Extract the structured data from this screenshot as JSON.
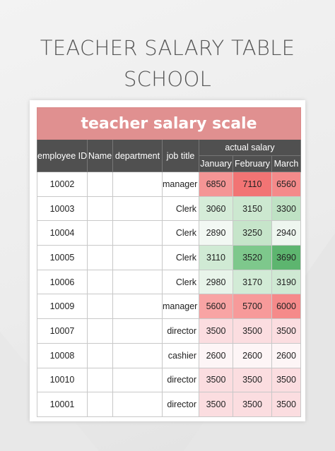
{
  "title_line1": "TEACHER SALARY TABLE",
  "title_line2": "SCHOOL",
  "table_title": "teacher salary scale",
  "headers": {
    "employee_id": "employee ID",
    "name": "Name",
    "department": "department",
    "job_title": "job title",
    "actual_salary": "actual salary",
    "january": "January",
    "february": "February",
    "march": "March"
  },
  "rows": [
    {
      "id": "10002",
      "name": "",
      "department": "",
      "job": "manager",
      "jan": "6850",
      "feb": "7110",
      "mar": "6560"
    },
    {
      "id": "10003",
      "name": "",
      "department": "",
      "job": "Clerk",
      "jan": "3060",
      "feb": "3150",
      "mar": "3300"
    },
    {
      "id": "10004",
      "name": "",
      "department": "",
      "job": "Clerk",
      "jan": "2890",
      "feb": "3250",
      "mar": "2940"
    },
    {
      "id": "10005",
      "name": "",
      "department": "",
      "job": "Clerk",
      "jan": "3110",
      "feb": "3520",
      "mar": "3690"
    },
    {
      "id": "10006",
      "name": "",
      "department": "",
      "job": "Clerk",
      "jan": "2980",
      "feb": "3170",
      "mar": "3190"
    },
    {
      "id": "10009",
      "name": "",
      "department": "",
      "job": "manager",
      "jan": "5600",
      "feb": "5700",
      "mar": "6000"
    },
    {
      "id": "10007",
      "name": "",
      "department": "",
      "job": "director",
      "jan": "3500",
      "feb": "3500",
      "mar": "3500"
    },
    {
      "id": "10008",
      "name": "",
      "department": "",
      "job": "cashier",
      "jan": "2600",
      "feb": "2600",
      "mar": "2600"
    },
    {
      "id": "10010",
      "name": "",
      "department": "",
      "job": "director",
      "jan": "3500",
      "feb": "3500",
      "mar": "3500"
    },
    {
      "id": "10001",
      "name": "",
      "department": "",
      "job": "director",
      "jan": "3500",
      "feb": "3500",
      "mar": "3500"
    }
  ],
  "cell_colors": [
    [
      "#f49595",
      "#f27474",
      "#f48a8a"
    ],
    [
      "#d5ecd8",
      "#cce8d0",
      "#bfe2c4"
    ],
    [
      "#f2f8f3",
      "#c6e5ca",
      "#eef6ef"
    ],
    [
      "#d0ead4",
      "#7ec88c",
      "#5db56f"
    ],
    [
      "#e8f4ea",
      "#d2ebd6",
      "#cfe9d3"
    ],
    [
      "#f8a4a4",
      "#f79a9a",
      "#f58a8a"
    ],
    [
      "#fbdde0",
      "#fbdde0",
      "#fbdde0"
    ],
    [
      "#fdf5f6",
      "#fdf5f6",
      "#fdf5f6"
    ],
    [
      "#fbdde0",
      "#fbdde0",
      "#fbdde0"
    ],
    [
      "#fbdde0",
      "#fbdde0",
      "#fbdde0"
    ]
  ]
}
